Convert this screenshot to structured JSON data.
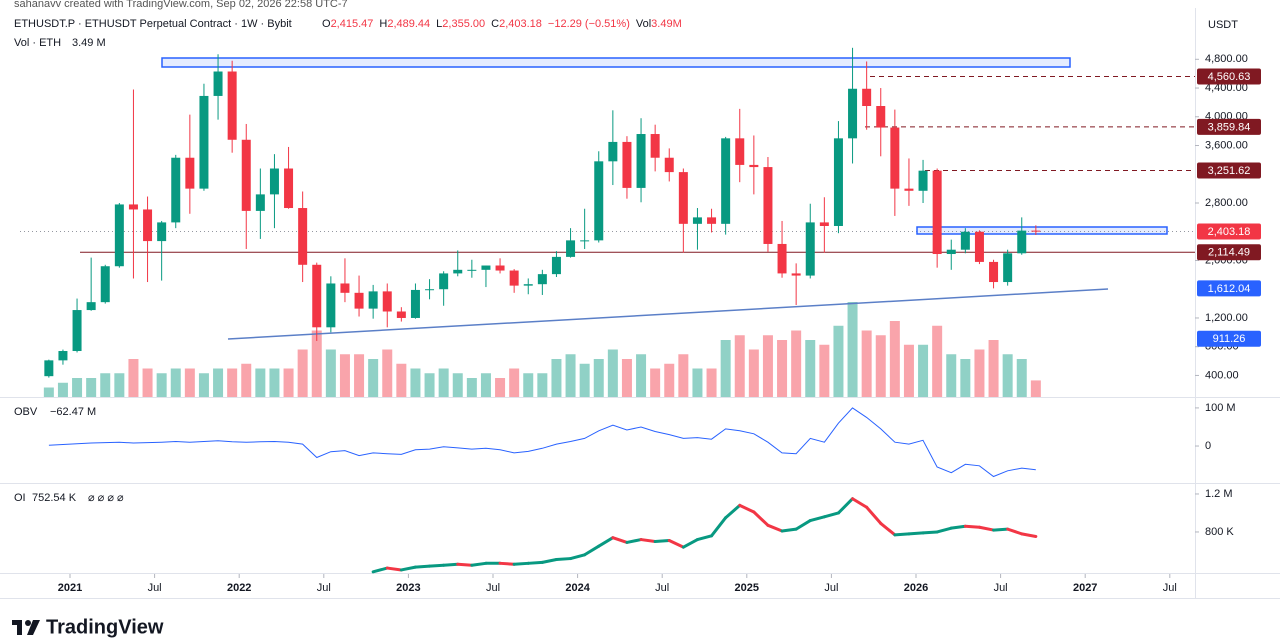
{
  "page": {
    "watermark": "sahanavv created with TradingView.com, Sep 02, 2026 22:58 UTC-7",
    "brand": "TradingView",
    "currency": "USDT"
  },
  "chart_data": [
    {
      "type": "candlestick",
      "title": "ETHUSDT.P · ETHUSDT Perpetual Contract · 1W · Bybit",
      "legend_items": [
        {
          "key": "O",
          "value": "2,415.47"
        },
        {
          "key": "H",
          "value": "2,489.44"
        },
        {
          "key": "L",
          "value": "2,355.00"
        },
        {
          "key": "C",
          "value": "2,403.18"
        },
        {
          "key": "",
          "value": "−12.29 (−0.51%)"
        },
        {
          "key": "Vol",
          "value": "3.49M"
        }
      ],
      "volume_name": "Vol · ETH",
      "volume_label": "3.49 M",
      "up_color": "#089981",
      "down_color": "#f23645",
      "x": [
        "2020-11",
        "2020-12",
        "2021-01",
        "2021-02",
        "2021-03",
        "2021-04",
        "2021-05",
        "2021-06",
        "2021-07",
        "2021-08",
        "2021-09",
        "2021-10",
        "2021-11",
        "2021-12",
        "2022-01",
        "2022-02",
        "2022-03",
        "2022-04",
        "2022-05",
        "2022-06",
        "2022-07",
        "2022-08",
        "2022-09",
        "2022-10",
        "2022-11",
        "2022-12",
        "2023-01",
        "2023-02",
        "2023-03",
        "2023-04",
        "2023-05",
        "2023-06",
        "2023-07",
        "2023-08",
        "2023-09",
        "2023-10",
        "2023-11",
        "2023-12",
        "2024-01",
        "2024-02",
        "2024-03",
        "2024-04",
        "2024-05",
        "2024-06",
        "2024-07",
        "2024-08",
        "2024-09",
        "2024-10",
        "2024-11",
        "2024-12",
        "2025-01",
        "2025-02",
        "2025-03",
        "2025-04",
        "2025-05",
        "2025-06",
        "2025-07",
        "2025-08",
        "2025-09",
        "2025-10",
        "2025-11",
        "2025-12",
        "2026-01",
        "2026-02",
        "2026-03",
        "2026-04",
        "2026-05",
        "2026-06",
        "2026-07",
        "2026-08",
        "2026-09"
      ],
      "open": [
        390,
        610,
        740,
        1310,
        1420,
        1920,
        2780,
        2710,
        2270,
        2530,
        3430,
        3000,
        4290,
        4630,
        3680,
        2690,
        2920,
        3280,
        2730,
        1940,
        1070,
        1680,
        1550,
        1330,
        1570,
        1290,
        1200,
        1590,
        1600,
        1820,
        1870,
        1870,
        1930,
        1860,
        1650,
        1670,
        1810,
        2050,
        2280,
        2280,
        3380,
        3650,
        3010,
        3760,
        3430,
        3230,
        2510,
        2600,
        2510,
        3700,
        3330,
        3300,
        2230,
        1820,
        1790,
        2530,
        2480,
        3700,
        4390,
        4150,
        3850,
        3000,
        2970,
        3250,
        2090,
        2150,
        2400,
        1980,
        1700,
        2100,
        2415.47
      ],
      "high": [
        620,
        760,
        1470,
        2040,
        1940,
        2800,
        4380,
        2890,
        2550,
        3470,
        4030,
        4460,
        4870,
        4780,
        3900,
        3280,
        3480,
        3580,
        2960,
        1970,
        1780,
        2030,
        1790,
        1660,
        1680,
        1350,
        1680,
        1740,
        1850,
        2140,
        2010,
        1930,
        2030,
        1880,
        1750,
        1870,
        2130,
        2450,
        2720,
        3520,
        4090,
        3730,
        3980,
        3890,
        3560,
        3280,
        2730,
        2720,
        3720,
        4110,
        3740,
        3440,
        2550,
        1960,
        2790,
        2880,
        3940,
        4960,
        4770,
        4400,
        4100,
        3420,
        3400,
        3280,
        2290,
        2450,
        2420,
        2010,
        2150,
        2600,
        2489.44
      ],
      "low": [
        370,
        550,
        720,
        1300,
        1400,
        1900,
        1750,
        1700,
        1720,
        2450,
        2650,
        2970,
        3960,
        3500,
        2160,
        2300,
        2450,
        2720,
        1700,
        880,
        1000,
        1420,
        1220,
        1190,
        1070,
        1150,
        1190,
        1460,
        1370,
        1780,
        1760,
        1630,
        1820,
        1550,
        1530,
        1520,
        1770,
        2040,
        2160,
        2250,
        3050,
        2860,
        2810,
        3240,
        3100,
        2110,
        2150,
        2390,
        2360,
        3090,
        2920,
        2120,
        1760,
        1380,
        1750,
        2110,
        2380,
        3350,
        3820,
        3450,
        2620,
        2760,
        2800,
        1900,
        1870,
        2100,
        1950,
        1612,
        1650,
        2080,
        2355
      ],
      "close": [
        610,
        740,
        1310,
        1420,
        1920,
        2780,
        2710,
        2270,
        2530,
        3430,
        3000,
        4290,
        4630,
        3680,
        2690,
        2920,
        3280,
        2730,
        1940,
        1070,
        1680,
        1550,
        1330,
        1570,
        1290,
        1200,
        1590,
        1600,
        1820,
        1870,
        1870,
        1930,
        1860,
        1650,
        1670,
        1810,
        2050,
        2280,
        2280,
        3380,
        3650,
        3010,
        3760,
        3430,
        3230,
        2510,
        2600,
        2510,
        3700,
        3330,
        3300,
        2230,
        1820,
        1790,
        2530,
        2480,
        3700,
        4390,
        4150,
        3850,
        3000,
        2970,
        3250,
        2090,
        2150,
        2400,
        1980,
        1700,
        2100,
        2415.47,
        2403.18
      ],
      "volume": [
        2,
        3,
        4,
        4,
        5,
        5,
        8,
        6,
        5,
        6,
        6,
        5,
        6,
        6,
        7,
        6,
        6,
        6,
        10,
        14,
        10,
        9,
        9,
        8,
        10,
        7,
        6,
        5,
        6,
        5,
        4,
        5,
        4,
        6,
        5,
        5,
        8,
        9,
        7,
        8,
        10,
        8,
        9,
        6,
        7,
        9,
        6,
        6,
        12,
        13,
        10,
        13,
        12,
        14,
        12,
        11,
        15,
        20,
        14,
        13,
        16,
        11,
        11,
        15,
        9,
        8,
        10,
        12,
        9,
        8,
        3.49
      ],
      "ylim": [
        100,
        5500
      ],
      "yticks": [
        {
          "value": 400,
          "label": "400.00"
        },
        {
          "value": 800,
          "label": "800.00"
        },
        {
          "value": 1200,
          "label": "1,200.00"
        },
        {
          "value": 2000,
          "label": "2,000.00"
        },
        {
          "value": 2800,
          "label": "2,800.00"
        },
        {
          "value": 3600,
          "label": "3,600.00"
        },
        {
          "value": 4000,
          "label": "4,000.00"
        },
        {
          "value": 4400,
          "label": "4,400.00"
        },
        {
          "value": 4800,
          "label": "4,800.00"
        }
      ],
      "price_lines": [
        {
          "value": 4560.63,
          "label": "4,560.63",
          "color": "#801922",
          "style": "dashed"
        },
        {
          "value": 3859.84,
          "label": "3,859.84",
          "color": "#801922",
          "style": "dashed"
        },
        {
          "value": 3251.62,
          "label": "3,251.62",
          "color": "#801922",
          "style": "dashed"
        },
        {
          "value": 2403.18,
          "label": "2,403.18",
          "color": "#f23645",
          "style": "dotted"
        },
        {
          "value": 2114.49,
          "label": "2,114.49",
          "color": "#801922",
          "style": "solid"
        },
        {
          "value": 1612.04,
          "label": "1,612.04",
          "color": "#2962ff",
          "style": "none"
        },
        {
          "value": 911.26,
          "label": "911.26",
          "color": "#2962ff",
          "style": "none"
        }
      ],
      "xticks": [
        {
          "value": "2021-01",
          "label": "2021"
        },
        {
          "value": "2021-07",
          "label": "Jul"
        },
        {
          "value": "2022-01",
          "label": "2022"
        },
        {
          "value": "2022-07",
          "label": "Jul"
        },
        {
          "value": "2023-01",
          "label": "2023"
        },
        {
          "value": "2023-07",
          "label": "Jul"
        },
        {
          "value": "2024-01",
          "label": "2024"
        },
        {
          "value": "2024-07",
          "label": "Jul"
        },
        {
          "value": "2025-01",
          "label": "2025"
        },
        {
          "value": "2025-07",
          "label": "Jul"
        },
        {
          "value": "2026-01",
          "label": "2026"
        },
        {
          "value": "2026-07",
          "label": "Jul"
        },
        {
          "value": "2027-01",
          "label": "2027"
        },
        {
          "value": "2027-07",
          "label": "Jul"
        }
      ]
    },
    {
      "type": "line",
      "name": "OBV",
      "value_label": "−62.47 M",
      "color": "#2962ff",
      "x": [
        "2020-11",
        "2020-12",
        "2021-01",
        "2021-02",
        "2021-03",
        "2021-04",
        "2021-05",
        "2021-06",
        "2021-07",
        "2021-08",
        "2021-09",
        "2021-10",
        "2021-11",
        "2021-12",
        "2022-01",
        "2022-02",
        "2022-03",
        "2022-04",
        "2022-05",
        "2022-06",
        "2022-07",
        "2022-08",
        "2022-09",
        "2022-10",
        "2022-11",
        "2022-12",
        "2023-01",
        "2023-02",
        "2023-03",
        "2023-04",
        "2023-05",
        "2023-06",
        "2023-07",
        "2023-08",
        "2023-09",
        "2023-10",
        "2023-11",
        "2023-12",
        "2024-01",
        "2024-02",
        "2024-03",
        "2024-04",
        "2024-05",
        "2024-06",
        "2024-07",
        "2024-08",
        "2024-09",
        "2024-10",
        "2024-11",
        "2024-12",
        "2025-01",
        "2025-02",
        "2025-03",
        "2025-04",
        "2025-05",
        "2025-06",
        "2025-07",
        "2025-08",
        "2025-09",
        "2025-10",
        "2025-11",
        "2025-12",
        "2026-01",
        "2026-02",
        "2026-03",
        "2026-04",
        "2026-05",
        "2026-06",
        "2026-07",
        "2026-08",
        "2026-09"
      ],
      "values": [
        2,
        4,
        6,
        8,
        9,
        10,
        8,
        9,
        10,
        12,
        10,
        12,
        14,
        11,
        10,
        11,
        12,
        10,
        5,
        -30,
        -15,
        -12,
        -25,
        -18,
        -20,
        -22,
        -10,
        -8,
        -2,
        -5,
        -8,
        -6,
        -10,
        -18,
        -14,
        -6,
        5,
        12,
        20,
        40,
        55,
        42,
        50,
        38,
        30,
        20,
        22,
        18,
        45,
        40,
        32,
        10,
        -18,
        -20,
        20,
        10,
        60,
        100,
        75,
        45,
        10,
        5,
        15,
        -55,
        -70,
        -48,
        -52,
        -80,
        -65,
        -58,
        -62.47
      ],
      "ylim": [
        -97,
        126
      ],
      "yticks": [
        {
          "value": 100,
          "label": "100 M"
        },
        0
      ]
    },
    {
      "type": "line",
      "name": "OI",
      "value_label": "752.54 K",
      "legend_icons": "⌀ ⌀ ⌀ ⌀",
      "up_color": "#089981",
      "down_color": "#f23645",
      "x": [
        "2022-10",
        "2022-11",
        "2022-12",
        "2023-01",
        "2023-02",
        "2023-03",
        "2023-04",
        "2023-05",
        "2023-06",
        "2023-07",
        "2023-08",
        "2023-09",
        "2023-10",
        "2023-11",
        "2023-12",
        "2024-01",
        "2024-02",
        "2024-03",
        "2024-04",
        "2024-05",
        "2024-06",
        "2024-07",
        "2024-08",
        "2024-09",
        "2024-10",
        "2024-11",
        "2024-12",
        "2025-01",
        "2025-02",
        "2025-03",
        "2025-04",
        "2025-05",
        "2025-06",
        "2025-07",
        "2025-08",
        "2025-09",
        "2025-10",
        "2025-11",
        "2025-12",
        "2026-01",
        "2026-02",
        "2026-03",
        "2026-04",
        "2026-05",
        "2026-06",
        "2026-07",
        "2026-08",
        "2026-09"
      ],
      "values": [
        380,
        420,
        400,
        430,
        440,
        450,
        460,
        450,
        470,
        470,
        460,
        470,
        480,
        510,
        520,
        560,
        650,
        740,
        690,
        720,
        700,
        710,
        640,
        720,
        760,
        950,
        1080,
        1010,
        870,
        810,
        830,
        920,
        960,
        1000,
        1150,
        1060,
        890,
        770,
        780,
        790,
        800,
        840,
        860,
        850,
        820,
        830,
        780,
        752.54
      ],
      "ylim": [
        368,
        1305
      ],
      "yticks": [
        {
          "value": 1200,
          "label": "1.2 M"
        },
        {
          "value": 800,
          "label": "800 K"
        }
      ]
    }
  ]
}
